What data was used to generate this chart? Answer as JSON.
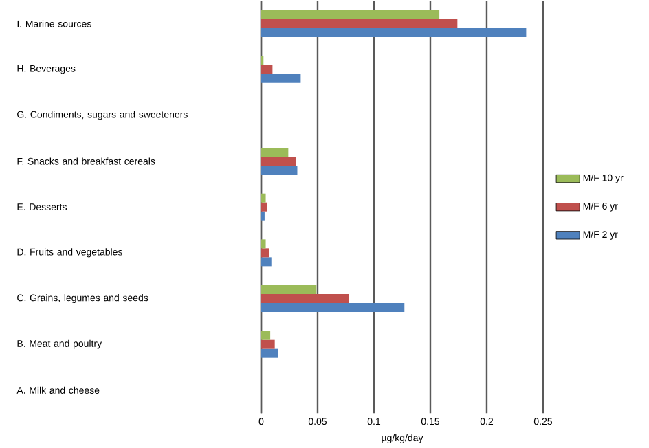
{
  "chart_data": {
    "type": "bar",
    "orientation": "horizontal",
    "xlabel": "µg/kg/day",
    "categories": [
      "I. Marine sources",
      "H. Beverages",
      "G. Condiments, sugars and sweeteners",
      "F. Snacks and breakfast cereals",
      "E. Desserts",
      "D. Fruits and vegetables",
      "C. Grains, legumes and seeds",
      "B. Meat and poultry",
      "A. Milk and cheese"
    ],
    "series": [
      {
        "name": "M/F 10 yr",
        "color": "#9bbb59",
        "values": [
          0.158,
          0.002,
          0,
          0.024,
          0.004,
          0.004,
          0.049,
          0.008,
          0
        ]
      },
      {
        "name": "M/F 6 yr",
        "color": "#c0504d",
        "values": [
          0.174,
          0.01,
          0,
          0.031,
          0.005,
          0.007,
          0.078,
          0.012,
          0
        ]
      },
      {
        "name": "M/F 2 yr",
        "color": "#4f81bd",
        "values": [
          0.235,
          0.035,
          0,
          0.032,
          0.003,
          0.009,
          0.127,
          0.015,
          0
        ]
      }
    ],
    "xlim": [
      0,
      0.25
    ],
    "xticks": [
      0,
      0.05,
      0.1,
      0.15,
      0.2,
      0.25
    ],
    "grid": "x",
    "legend": "right"
  }
}
